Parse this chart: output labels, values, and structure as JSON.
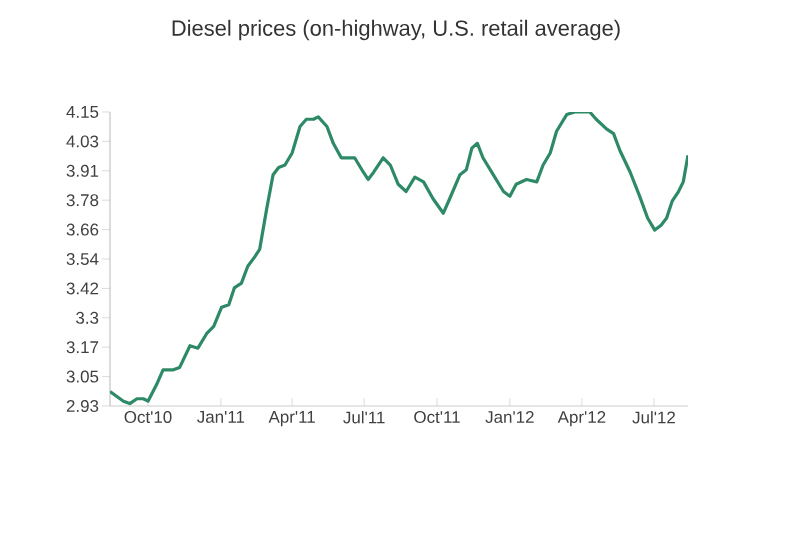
{
  "chart_data": {
    "type": "line",
    "title": "Diesel prices (on-highway, U.S. retail average)",
    "x": [
      "2010-08-14",
      "2010-08-31",
      "2010-09-08",
      "2010-09-17",
      "2010-09-25",
      "2010-10-01",
      "2010-10-12",
      "2010-10-20",
      "2010-11-02",
      "2010-11-10",
      "2010-11-23",
      "2010-12-03",
      "2010-12-14",
      "2010-12-23",
      "2011-01-02",
      "2011-01-11",
      "2011-01-18",
      "2011-01-27",
      "2011-02-04",
      "2011-02-13",
      "2011-02-19",
      "2011-02-28",
      "2011-03-08",
      "2011-03-15",
      "2011-03-23",
      "2011-04-01",
      "2011-04-11",
      "2011-04-19",
      "2011-04-28",
      "2011-05-04",
      "2011-05-15",
      "2011-05-23",
      "2011-06-02",
      "2011-06-13",
      "2011-06-19",
      "2011-06-30",
      "2011-07-06",
      "2011-07-13",
      "2011-07-25",
      "2011-08-03",
      "2011-08-13",
      "2011-08-23",
      "2011-09-03",
      "2011-09-14",
      "2011-09-26",
      "2011-10-09",
      "2011-10-17",
      "2011-10-30",
      "2011-11-07",
      "2011-11-14",
      "2011-11-21",
      "2011-11-28",
      "2011-12-11",
      "2011-12-24",
      "2012-01-01",
      "2012-01-09",
      "2012-01-22",
      "2012-02-04",
      "2012-02-12",
      "2012-02-21",
      "2012-02-29",
      "2012-03-13",
      "2012-03-23",
      "2012-04-11",
      "2012-04-19",
      "2012-05-02",
      "2012-05-11",
      "2012-05-19",
      "2012-06-01",
      "2012-06-13",
      "2012-06-23",
      "2012-07-02",
      "2012-07-10",
      "2012-07-17",
      "2012-07-24",
      "2012-08-01",
      "2012-08-07",
      "2012-08-13"
    ],
    "series": [
      {
        "color": "#2e8a66",
        "values": [
          2.99,
          2.95,
          2.94,
          2.96,
          2.96,
          2.95,
          3.02,
          3.08,
          3.08,
          3.09,
          3.18,
          3.17,
          3.23,
          3.26,
          3.34,
          3.35,
          3.42,
          3.44,
          3.51,
          3.55,
          3.58,
          3.75,
          3.89,
          3.92,
          3.93,
          3.98,
          4.09,
          4.12,
          4.12,
          4.13,
          4.09,
          4.02,
          3.96,
          3.96,
          3.96,
          3.9,
          3.87,
          3.9,
          3.96,
          3.93,
          3.85,
          3.82,
          3.88,
          3.86,
          3.79,
          3.73,
          3.79,
          3.89,
          3.91,
          4.0,
          4.02,
          3.96,
          3.89,
          3.82,
          3.8,
          3.85,
          3.87,
          3.86,
          3.93,
          3.98,
          4.07,
          4.14,
          4.15,
          4.15,
          4.12,
          4.08,
          4.06,
          3.99,
          3.9,
          3.8,
          3.71,
          3.66,
          3.68,
          3.71,
          3.78,
          3.82,
          3.86,
          3.97
        ]
      }
    ],
    "xlim": [
      "2010-08-14",
      "2012-08-13"
    ],
    "xticks": [
      {
        "value": "2010-10-01",
        "label": "Oct'10"
      },
      {
        "value": "2011-01-01",
        "label": "Jan'11"
      },
      {
        "value": "2011-04-01",
        "label": "Apr'11"
      },
      {
        "value": "2011-07-01",
        "label": "Jul'11"
      },
      {
        "value": "2011-10-01",
        "label": "Oct'11"
      },
      {
        "value": "2012-01-01",
        "label": "Jan'12"
      },
      {
        "value": "2012-04-01",
        "label": "Apr'12"
      },
      {
        "value": "2012-07-01",
        "label": "Jul'12"
      }
    ],
    "ylim": [
      2.93,
      4.15
    ],
    "yticks": [
      2.93,
      {
        "value": 3.052,
        "label": "3.05"
      },
      {
        "value": 3.174,
        "label": "3.17"
      },
      {
        "value": 3.296,
        "label": "3.3"
      },
      {
        "value": 3.418,
        "label": "3.42"
      },
      3.54,
      {
        "value": 3.662,
        "label": "3.66"
      },
      {
        "value": 3.784,
        "label": "3.78"
      },
      {
        "value": 3.906,
        "label": "3.91"
      },
      {
        "value": 4.028,
        "label": "4.03"
      },
      4.15
    ],
    "grid": false,
    "marker": "none",
    "line_style": "solid"
  }
}
